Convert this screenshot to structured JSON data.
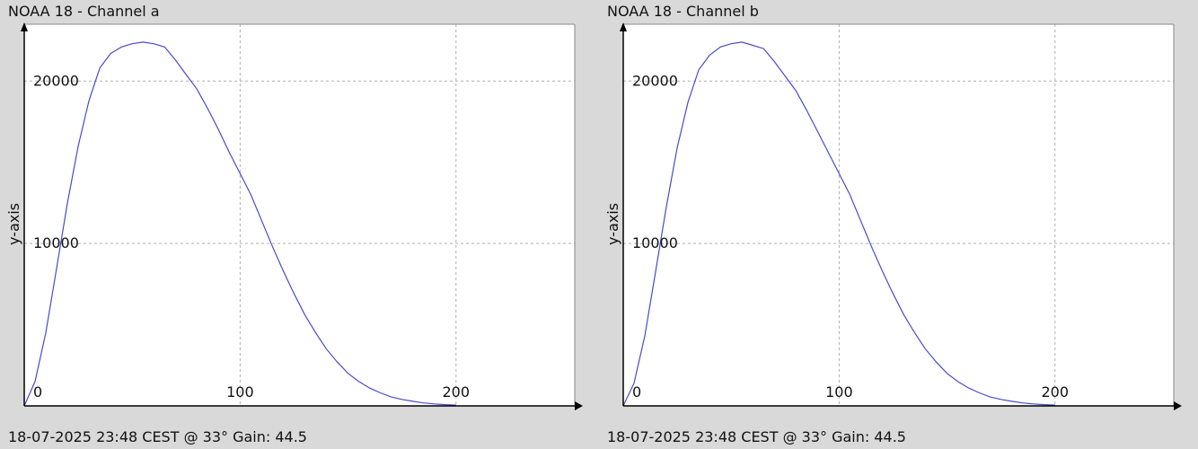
{
  "panels": [
    {
      "title": "NOAA 18 - Channel a",
      "footer": "18-07-2025 23:48 CEST @ 33° Gain: 44.5"
    },
    {
      "title": "NOAA 18 - Channel b",
      "footer": "18-07-2025 23:48 CEST @ 33° Gain: 44.5"
    }
  ],
  "colors": {
    "line": "#4a4acc",
    "background": "#d9d9d9",
    "plot_bg": "#ffffff",
    "grid": "#b0b0b0"
  },
  "chart_data": [
    {
      "type": "line",
      "title": "NOAA 18 - Channel a",
      "xlabel": "",
      "ylabel": "y-axis",
      "xlim": [
        0,
        255
      ],
      "ylim": [
        0,
        23500
      ],
      "x_ticks": [
        0,
        100,
        200
      ],
      "y_ticks": [
        10000,
        20000
      ],
      "grid": true,
      "series": [
        {
          "x": [
            0,
            5,
            10,
            15,
            20,
            25,
            30,
            35,
            40,
            45,
            50,
            55,
            60,
            65,
            70,
            75,
            80,
            85,
            90,
            95,
            100,
            105,
            110,
            115,
            120,
            125,
            130,
            135,
            140,
            145,
            150,
            155,
            160,
            165,
            170,
            175,
            180,
            185,
            190,
            195,
            200
          ],
          "values": [
            0,
            1500,
            4500,
            8500,
            12500,
            16000,
            18800,
            20800,
            21700,
            22100,
            22300,
            22400,
            22300,
            22100,
            21300,
            20400,
            19500,
            18300,
            17000,
            15600,
            14300,
            13000,
            11400,
            9800,
            8300,
            6900,
            5600,
            4500,
            3500,
            2700,
            2000,
            1500,
            1100,
            800,
            550,
            400,
            280,
            180,
            120,
            80,
            50
          ]
        }
      ]
    },
    {
      "type": "line",
      "title": "NOAA 18 - Channel b",
      "xlabel": "",
      "ylabel": "y-axis",
      "xlim": [
        0,
        255
      ],
      "ylim": [
        0,
        23500
      ],
      "x_ticks": [
        0,
        100,
        200
      ],
      "y_ticks": [
        10000,
        20000
      ],
      "grid": true,
      "series": [
        {
          "x": [
            0,
            5,
            10,
            15,
            20,
            25,
            30,
            35,
            40,
            45,
            50,
            55,
            60,
            65,
            70,
            75,
            80,
            85,
            90,
            95,
            100,
            105,
            110,
            115,
            120,
            125,
            130,
            135,
            140,
            145,
            150,
            155,
            160,
            165,
            170,
            175,
            180,
            185,
            190,
            195,
            200
          ],
          "values": [
            0,
            1400,
            4300,
            8300,
            12300,
            15900,
            18700,
            20700,
            21600,
            22100,
            22300,
            22400,
            22200,
            22000,
            21200,
            20300,
            19400,
            18200,
            16900,
            15600,
            14300,
            13000,
            11400,
            9800,
            8300,
            6900,
            5600,
            4500,
            3500,
            2700,
            2000,
            1500,
            1100,
            800,
            550,
            400,
            280,
            180,
            120,
            80,
            50
          ]
        }
      ]
    }
  ]
}
